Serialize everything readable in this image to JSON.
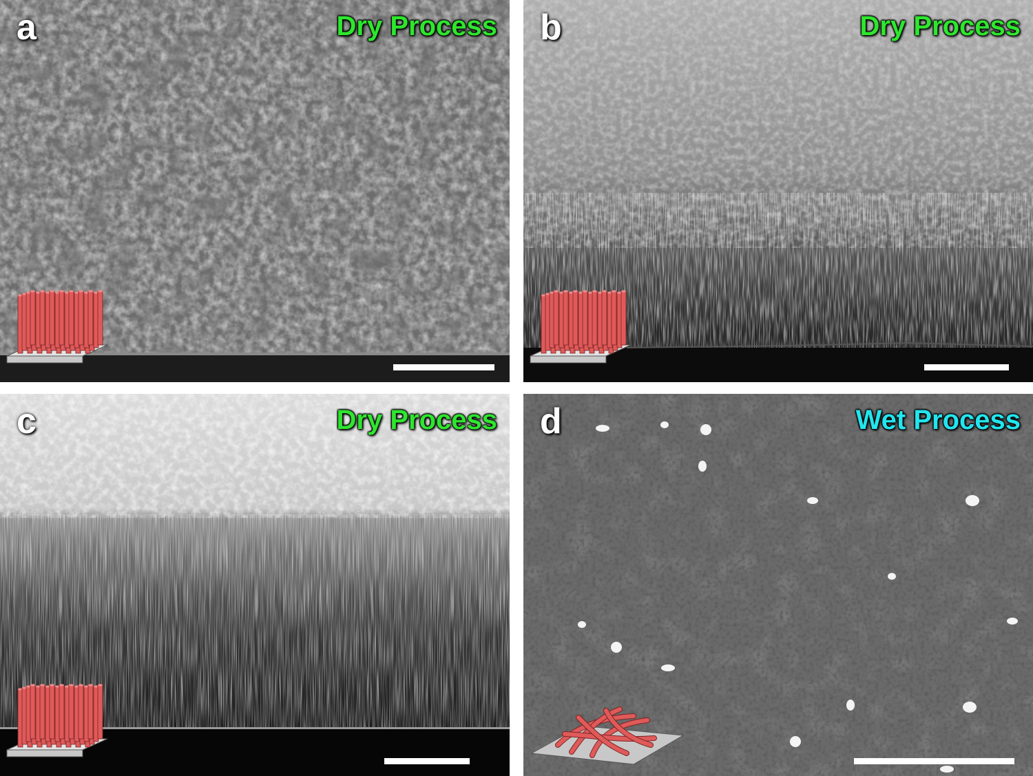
{
  "panels": {
    "a": {
      "letter": "a",
      "process": "Dry Process"
    },
    "b": {
      "letter": "b",
      "process": "Dry Process"
    },
    "c": {
      "letter": "c",
      "process": "Dry Process"
    },
    "d": {
      "letter": "d",
      "process": "Wet Process"
    }
  },
  "colors": {
    "dry_label": "#2ee62e",
    "wet_label": "#22e5ee",
    "nanowire": "#e05a5a",
    "substrate": "#c8c8c8",
    "scalebar": "#ffffff"
  },
  "icons": {
    "vertical_array": "vertical-nanowire-array-icon",
    "random_network": "random-nanowire-network-icon"
  }
}
